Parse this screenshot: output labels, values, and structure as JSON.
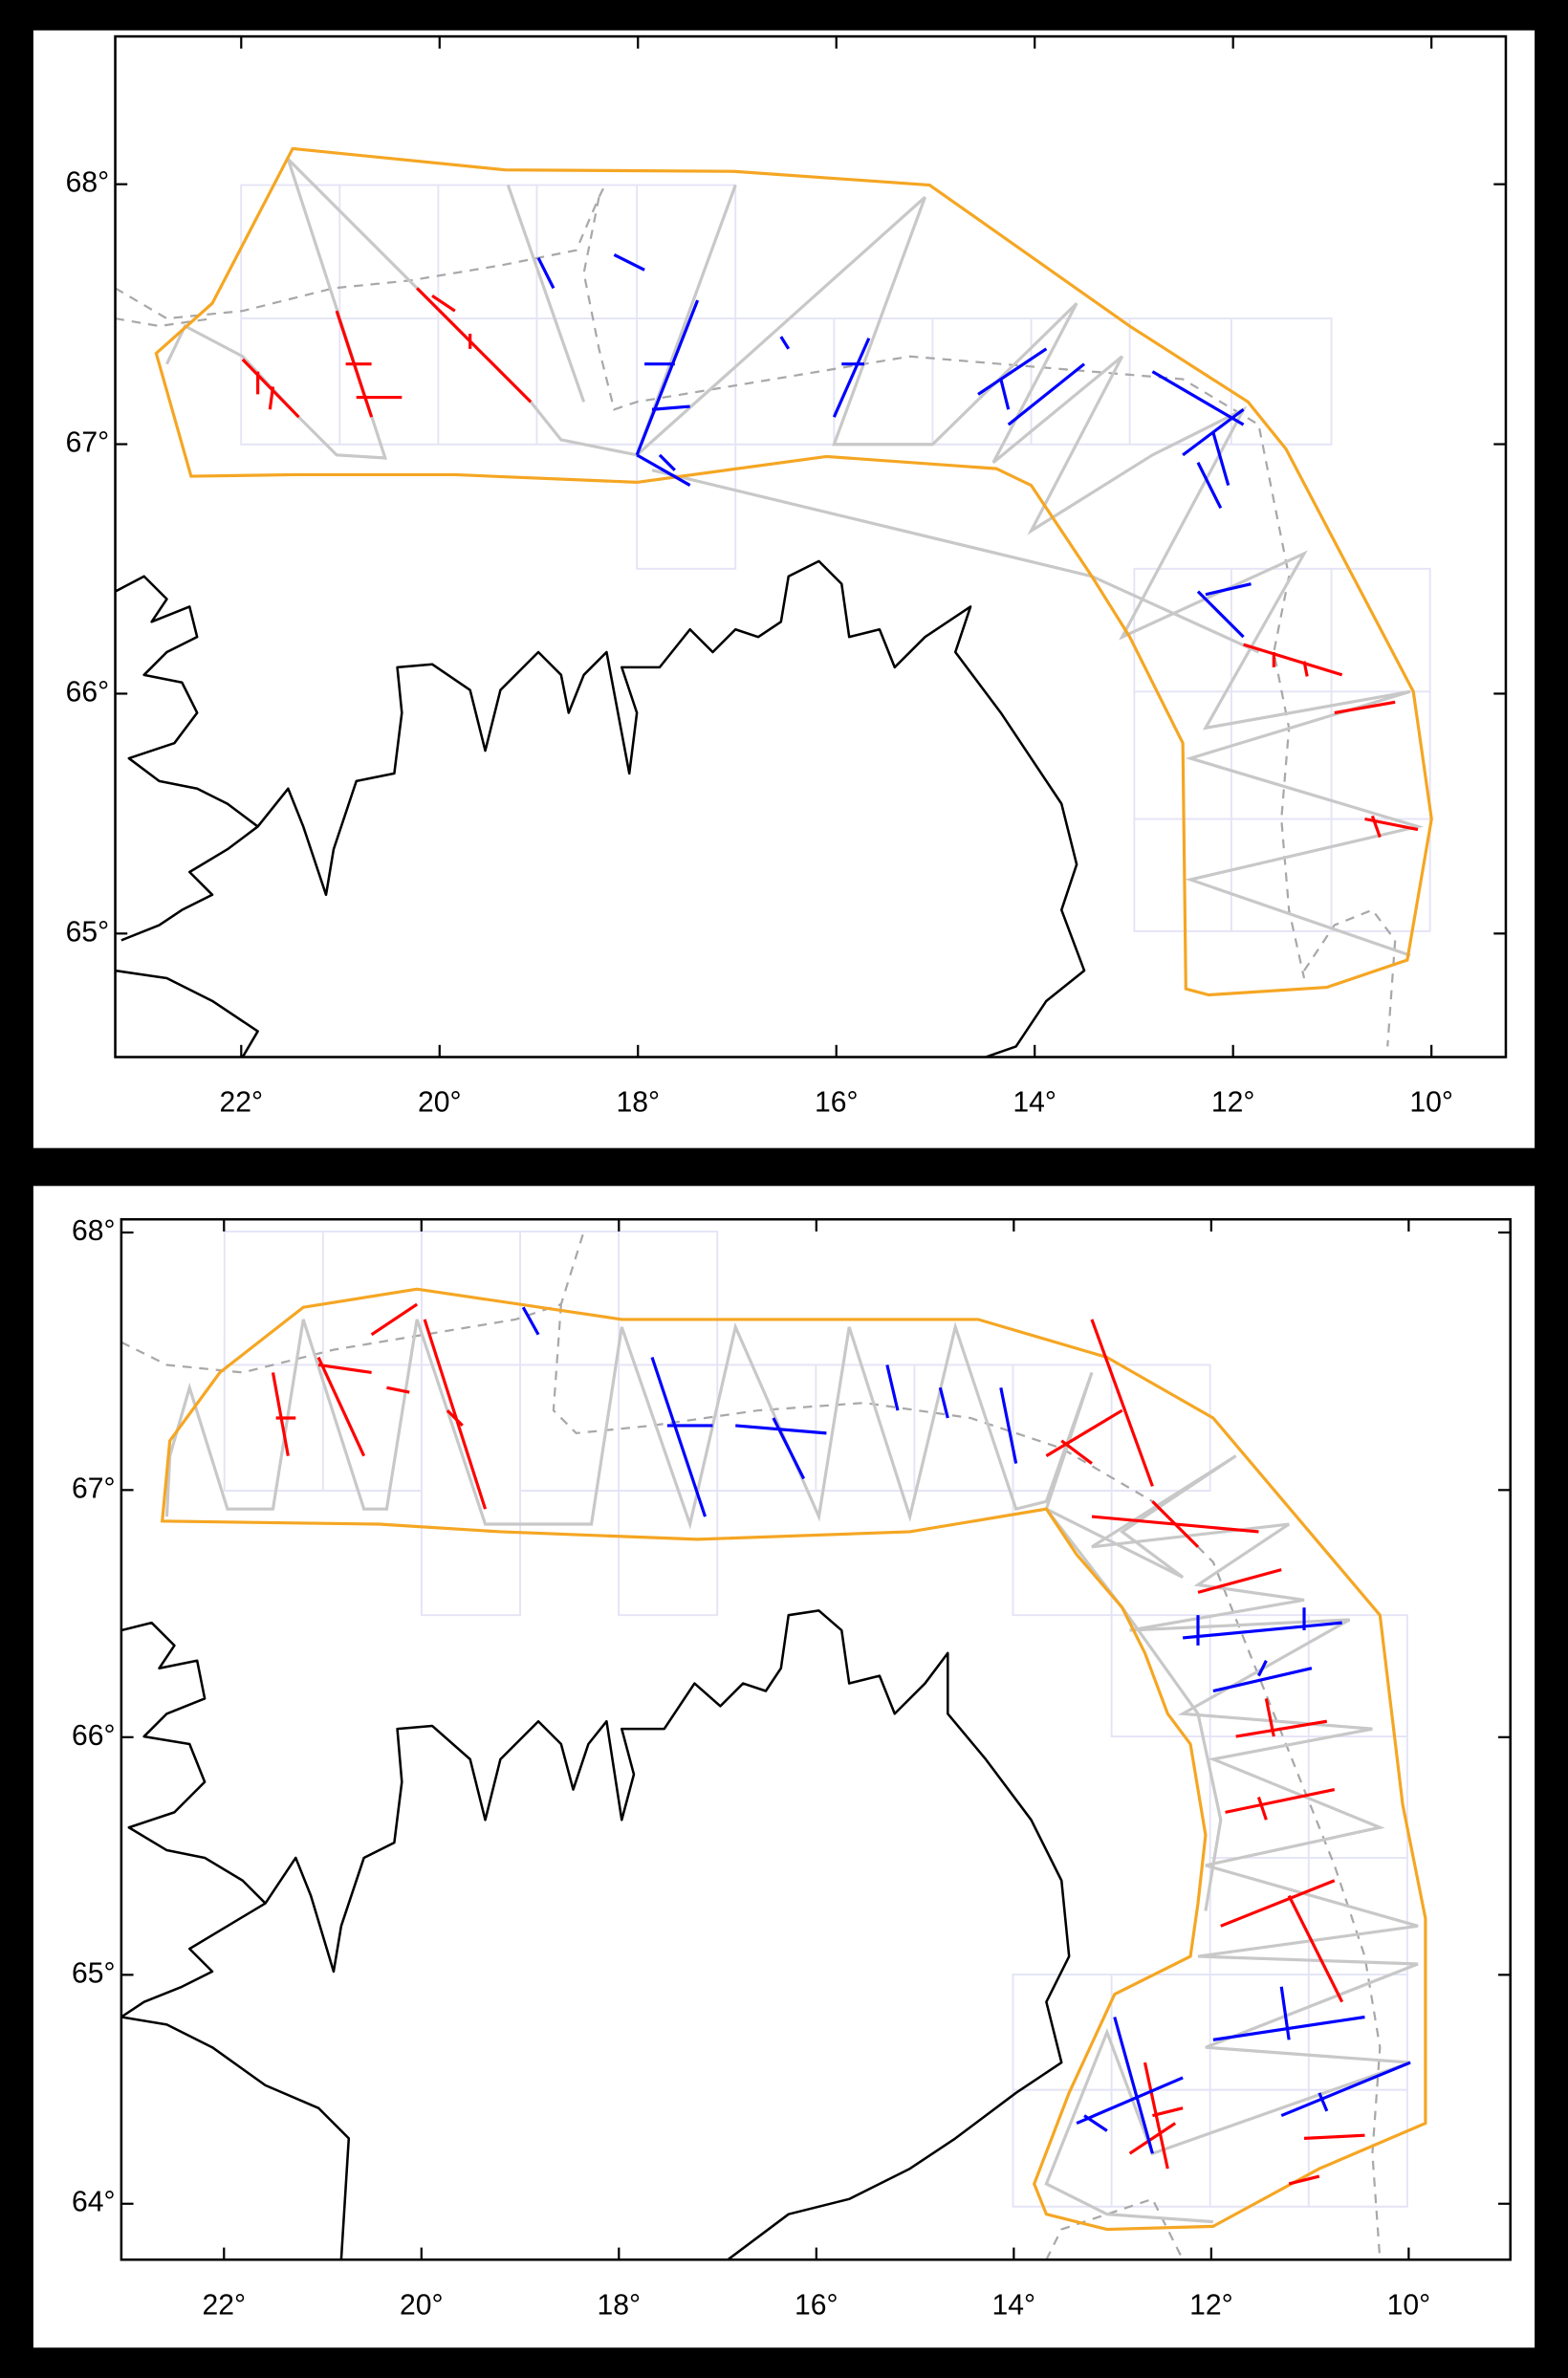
{
  "chart_data": [
    {
      "type": "map",
      "projection": "mercator",
      "xlim": [
        23.27,
        9.25
      ],
      "ylim": [
        64.47,
        68.55
      ],
      "xticks": [
        {
          "value": 22,
          "label": "22°"
        },
        {
          "value": 20,
          "label": "20°"
        },
        {
          "value": 18,
          "label": "18°"
        },
        {
          "value": 16,
          "label": "16°"
        },
        {
          "value": 14,
          "label": "14°"
        },
        {
          "value": 12,
          "label": "12°"
        },
        {
          "value": 10,
          "label": "10°"
        }
      ],
      "yticks": [
        {
          "value": 65,
          "label": "65°"
        },
        {
          "value": 66,
          "label": "66°"
        },
        {
          "value": 67,
          "label": "67°"
        },
        {
          "value": 68,
          "label": "68°"
        }
      ]
    },
    {
      "type": "map",
      "projection": "mercator",
      "xlim": [
        23.04,
        8.97
      ],
      "ylim": [
        63.75,
        68.05
      ],
      "xticks": [
        {
          "value": 22,
          "label": "22°"
        },
        {
          "value": 20,
          "label": "20°"
        },
        {
          "value": 18,
          "label": "18°"
        },
        {
          "value": 16,
          "label": "16°"
        },
        {
          "value": 14,
          "label": "14°"
        },
        {
          "value": 12,
          "label": "12°"
        },
        {
          "value": 10,
          "label": "10°"
        }
      ],
      "yticks": [
        {
          "value": 64,
          "label": "64°"
        },
        {
          "value": 65,
          "label": "65°"
        },
        {
          "value": 66,
          "label": "66°"
        },
        {
          "value": 67,
          "label": "67°"
        },
        {
          "value": 68,
          "label": "68°"
        }
      ]
    }
  ]
}
